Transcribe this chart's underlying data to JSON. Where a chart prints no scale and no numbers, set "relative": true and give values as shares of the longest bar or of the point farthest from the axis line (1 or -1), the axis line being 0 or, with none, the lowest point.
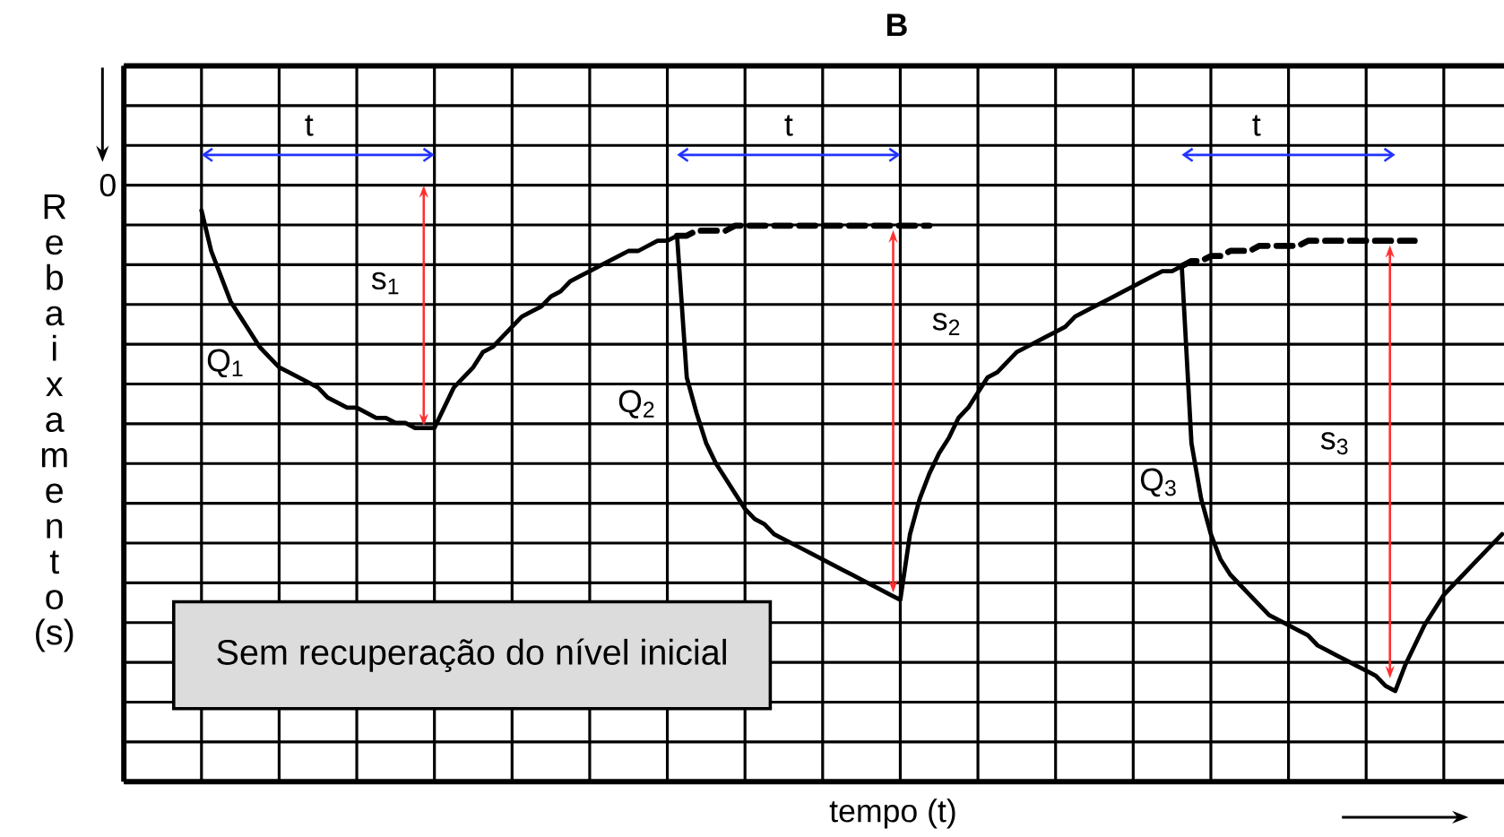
{
  "chart_data": {
    "type": "line",
    "title": "B",
    "xlabel": "tempo (t)",
    "ylabel": "Rebaixamento (s)",
    "relative": true,
    "grid": true,
    "categories": [
      null,
      null,
      null,
      null,
      null,
      null,
      null,
      null,
      null,
      null,
      null,
      null,
      null,
      null,
      null,
      null,
      null,
      null,
      null,
      null,
      null,
      null,
      null,
      null,
      null,
      null,
      null,
      null,
      null,
      null,
      null,
      null,
      null,
      null,
      null,
      null,
      null,
      null,
      null,
      null,
      null,
      null,
      null,
      null,
      null,
      null,
      null,
      null,
      null,
      null,
      null,
      null,
      null,
      null,
      null,
      null,
      null,
      null,
      null,
      null,
      null,
      null,
      null,
      null,
      null,
      null,
      null,
      null,
      null,
      null,
      null,
      null,
      null,
      null,
      null,
      null,
      null,
      null,
      null,
      null,
      null,
      null,
      null,
      null,
      null,
      null,
      null,
      null,
      null,
      null,
      null,
      null,
      null,
      null,
      null,
      null,
      null,
      null,
      null,
      null,
      null,
      null,
      null,
      null,
      null,
      null,
      null,
      null,
      null,
      null,
      null,
      null,
      null,
      null,
      null,
      null,
      null,
      null,
      null,
      null,
      null,
      null,
      null,
      null,
      null,
      null,
      null,
      null,
      null,
      null,
      null,
      null,
      null,
      null,
      null
    ],
    "series": [
      {
        "color": "#000000",
        "line_style": "solid",
        "values": [
          -0.05,
          -0.13,
          -0.18,
          -0.23,
          -0.26,
          -0.29,
          -0.32,
          -0.34,
          -0.36,
          -0.37,
          -0.38,
          -0.39,
          -0.4,
          -0.42,
          -0.43,
          -0.44,
          -0.44,
          -0.45,
          -0.46,
          -0.46,
          -0.47,
          -0.47,
          -0.48,
          -0.48,
          -0.48,
          -0.44,
          -0.4,
          -0.38,
          -0.36,
          -0.33,
          -0.32,
          -0.3,
          -0.28,
          -0.26,
          -0.25,
          -0.24,
          -0.22,
          -0.21,
          -0.19,
          -0.18,
          -0.17,
          -0.16,
          -0.15,
          -0.14,
          -0.13,
          -0.13,
          -0.12,
          -0.11,
          -0.11,
          -0.1,
          -0.38,
          -0.45,
          -0.51,
          -0.55,
          -0.58,
          -0.61,
          -0.64,
          -0.66,
          -0.67,
          -0.69,
          -0.7,
          -0.71,
          -0.72,
          -0.73,
          -0.74,
          -0.75,
          -0.76,
          -0.77,
          -0.78,
          -0.79,
          -0.8,
          -0.81,
          -0.82,
          -0.69,
          -0.62,
          -0.57,
          -0.53,
          -0.5,
          -0.46,
          -0.44,
          -0.41,
          -0.38,
          -0.37,
          -0.35,
          -0.33,
          -0.32,
          -0.31,
          -0.3,
          -0.29,
          -0.28,
          -0.26,
          -0.25,
          -0.24,
          -0.23,
          -0.22,
          -0.21,
          -0.2,
          -0.19,
          -0.18,
          -0.17,
          -0.17,
          -0.16,
          -0.51,
          -0.62,
          -0.69,
          -0.74,
          -0.77,
          -0.79,
          -0.81,
          -0.83,
          -0.85,
          -0.86,
          -0.87,
          -0.88,
          -0.89,
          -0.91,
          -0.92,
          -0.93,
          -0.94,
          -0.95,
          -0.96,
          -0.97,
          -0.99,
          -1.0,
          -0.95,
          -0.91,
          -0.87,
          -0.84,
          -0.81,
          -0.79,
          -0.77,
          -0.75,
          -0.73,
          -0.71,
          -0.69
        ]
      },
      {
        "color": "#000000",
        "line_style": "dashed",
        "values": [
          null,
          null,
          null,
          null,
          null,
          null,
          null,
          null,
          null,
          null,
          null,
          null,
          null,
          null,
          null,
          null,
          null,
          null,
          null,
          null,
          null,
          null,
          null,
          null,
          null,
          null,
          null,
          null,
          null,
          null,
          null,
          null,
          null,
          null,
          null,
          null,
          null,
          null,
          null,
          null,
          null,
          null,
          null,
          null,
          null,
          null,
          null,
          null,
          null,
          -0.1,
          -0.1,
          -0.09,
          -0.09,
          -0.09,
          -0.09,
          -0.08,
          -0.08,
          -0.08,
          -0.08,
          -0.08,
          -0.08,
          -0.08,
          -0.08,
          -0.08,
          -0.08,
          -0.08,
          -0.08,
          -0.08,
          -0.08,
          -0.08,
          -0.08,
          -0.08,
          -0.08,
          -0.08,
          -0.08,
          -0.08,
          null,
          null,
          null,
          null,
          null,
          null,
          null,
          null,
          null,
          null,
          null,
          null,
          null,
          null,
          null,
          null,
          null,
          null,
          null,
          null,
          null,
          null,
          null,
          null,
          null,
          -0.16,
          -0.15,
          -0.15,
          -0.14,
          -0.14,
          -0.13,
          -0.13,
          -0.13,
          -0.12,
          -0.12,
          -0.12,
          -0.12,
          -0.12,
          -0.11,
          -0.11,
          -0.11,
          -0.11,
          -0.11,
          -0.11,
          -0.11,
          -0.11,
          -0.11,
          -0.11,
          -0.11,
          -0.11,
          null,
          null,
          null,
          null,
          null,
          null,
          null,
          null,
          null
        ]
      }
    ],
    "annotations": [
      "0",
      "t",
      "t",
      "t",
      "Q$_{1}$",
      "Q$_{2}$",
      "Q$_{3}$",
      "s$_{1}$",
      "s$_{2}$",
      "s$_{3}$",
      "Sem recuperação do nível inicial"
    ]
  }
}
